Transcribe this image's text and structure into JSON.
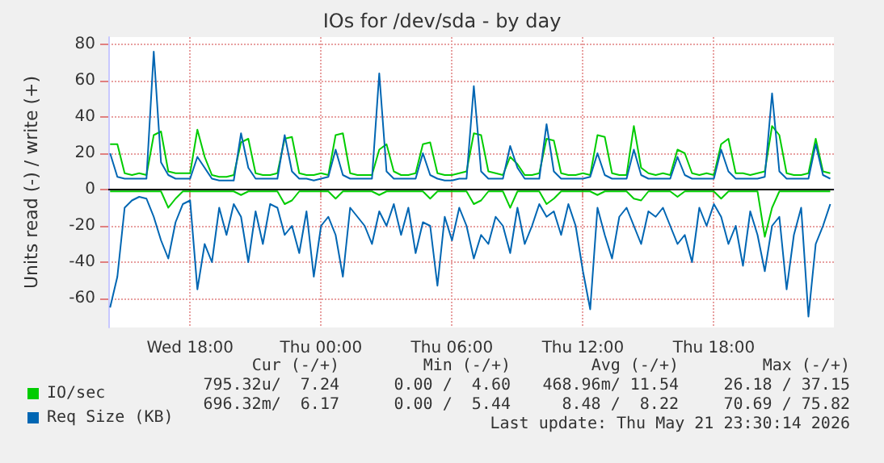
{
  "chart_data": {
    "type": "line",
    "title": "IOs for /dev/sda - by day",
    "ylabel": "Units read (-) / write (+)",
    "xlim": [
      "2026-05-20T14:15",
      "2026-05-21T23:30"
    ],
    "xticks": [
      {
        "value": "2026-05-20T18:00",
        "label": "Wed 18:00"
      },
      {
        "value": "2026-05-21T00:00",
        "label": "Thu 00:00"
      },
      {
        "value": "2026-05-21T06:00",
        "label": "Thu 06:00"
      },
      {
        "value": "2026-05-21T12:00",
        "label": "Thu 12:00"
      },
      {
        "value": "2026-05-21T18:00",
        "label": "Thu 18:00"
      }
    ],
    "ylim": [
      -76,
      84
    ],
    "yticks": [
      -60,
      -40,
      -20,
      0,
      20,
      40,
      60,
      80
    ],
    "grid": true,
    "legend": "bottom left",
    "marker": "none",
    "line_style": "solid",
    "ref_lines": [
      {
        "axis": "y",
        "value": 0,
        "color": "#000000"
      }
    ],
    "annotations": [
      "Cur (-/+)",
      "Min (-/+)",
      "Avg (-/+)",
      "Max (-/+)",
      "795.32u/  7.24",
      "0.00 /  4.60",
      "468.96m/ 11.54",
      "26.18 / 37.15",
      "696.32m/  6.17",
      "0.00 /  5.44",
      "8.48 /  8.22",
      "70.69 / 75.82",
      "Last update: Thu May 21 23:30:14 2026"
    ],
    "series": [
      {
        "name": "IO/sec",
        "color": "#00cc00",
        "values": [
          25,
          25,
          9,
          8,
          9,
          8,
          30,
          32,
          10,
          9,
          9,
          9,
          33,
          18,
          8,
          7,
          7,
          8,
          26,
          28,
          9,
          8,
          8,
          9,
          28,
          29,
          9,
          8,
          8,
          9,
          8,
          30,
          31,
          9,
          8,
          8,
          8,
          22,
          25,
          10,
          8,
          8,
          9,
          25,
          26,
          9,
          8,
          8,
          9,
          10,
          31,
          30,
          10,
          9,
          8,
          18,
          14,
          8,
          8,
          9,
          28,
          27,
          9,
          8,
          8,
          9,
          8,
          30,
          29,
          9,
          8,
          8,
          35,
          12,
          9,
          8,
          9,
          8,
          22,
          20,
          9,
          8,
          9,
          8,
          25,
          28,
          9,
          9,
          8,
          9,
          10,
          35,
          30,
          9,
          8,
          8,
          9,
          28,
          10,
          9
        ]
      },
      {
        "color": "#00cc00",
        "values": [
          -1,
          -1,
          -1,
          -1,
          -1,
          -1,
          -1,
          -1,
          -10,
          -5,
          -1,
          -1,
          -1,
          -1,
          -1,
          -1,
          -1,
          -1,
          -3,
          -1,
          -1,
          -1,
          -1,
          -1,
          -8,
          -6,
          -1,
          -1,
          -1,
          -1,
          -1,
          -5,
          -1,
          -1,
          -1,
          -1,
          -1,
          -3,
          -1,
          -1,
          -1,
          -1,
          -1,
          -1,
          -5,
          -1,
          -1,
          -1,
          -1,
          -1,
          -8,
          -6,
          -1,
          -1,
          -1,
          -10,
          -1,
          -1,
          -1,
          -1,
          -8,
          -5,
          -1,
          -1,
          -1,
          -1,
          -1,
          -3,
          -1,
          -1,
          -1,
          -1,
          -5,
          -6,
          -1,
          -1,
          -1,
          -1,
          -4,
          -1,
          -1,
          -1,
          -1,
          -1,
          -5,
          -1,
          -1,
          -1,
          -1,
          -1,
          -26,
          -10,
          -1,
          -1,
          -1,
          -1,
          -1,
          -1,
          -1,
          -1
        ]
      },
      {
        "name": "Req Size (KB)",
        "color": "#0066b3",
        "values": [
          20,
          7,
          6,
          6,
          6,
          6,
          76,
          15,
          8,
          6,
          6,
          6,
          18,
          12,
          6,
          5,
          5,
          5,
          31,
          12,
          6,
          6,
          6,
          6,
          30,
          10,
          6,
          6,
          5,
          6,
          7,
          22,
          8,
          6,
          6,
          6,
          6,
          64,
          10,
          6,
          6,
          6,
          6,
          20,
          8,
          6,
          5,
          5,
          6,
          6,
          57,
          10,
          6,
          6,
          6,
          24,
          12,
          6,
          6,
          6,
          36,
          10,
          6,
          6,
          6,
          6,
          7,
          20,
          8,
          6,
          6,
          6,
          22,
          8,
          6,
          6,
          6,
          6,
          18,
          8,
          6,
          6,
          6,
          6,
          22,
          10,
          6,
          6,
          6,
          6,
          7,
          53,
          10,
          6,
          6,
          6,
          6,
          25,
          8,
          6
        ]
      },
      {
        "color": "#0066b3",
        "values": [
          -65,
          -48,
          -10,
          -6,
          -4,
          -5,
          -15,
          -28,
          -38,
          -18,
          -8,
          -6,
          -55,
          -30,
          -40,
          -10,
          -25,
          -8,
          -15,
          -40,
          -12,
          -30,
          -8,
          -10,
          -25,
          -20,
          -35,
          -12,
          -48,
          -20,
          -15,
          -25,
          -48,
          -10,
          -15,
          -20,
          -30,
          -12,
          -20,
          -8,
          -25,
          -10,
          -35,
          -18,
          -20,
          -53,
          -15,
          -28,
          -10,
          -20,
          -38,
          -25,
          -30,
          -15,
          -20,
          -35,
          -10,
          -30,
          -20,
          -8,
          -15,
          -12,
          -25,
          -8,
          -20,
          -45,
          -66,
          -10,
          -25,
          -38,
          -15,
          -10,
          -20,
          -30,
          -12,
          -15,
          -10,
          -20,
          -30,
          -25,
          -40,
          -10,
          -20,
          -8,
          -15,
          -30,
          -20,
          -42,
          -12,
          -25,
          -45,
          -20,
          -15,
          -55,
          -25,
          -10,
          -70,
          -30,
          -20,
          -8
        ]
      }
    ],
    "x": [
      "2026-05-20T14:20",
      "2026-05-20T14:40",
      "2026-05-20T15:00",
      "2026-05-20T15:20",
      "2026-05-20T15:40",
      "2026-05-20T16:00",
      "2026-05-20T16:20",
      "2026-05-20T16:40",
      "2026-05-20T17:00",
      "2026-05-20T17:20",
      "2026-05-20T17:40",
      "2026-05-20T18:00",
      "2026-05-20T18:20",
      "2026-05-20T18:40",
      "2026-05-20T19:00",
      "2026-05-20T19:20",
      "2026-05-20T19:40",
      "2026-05-20T20:00",
      "2026-05-20T20:20",
      "2026-05-20T20:40",
      "2026-05-20T21:00",
      "2026-05-20T21:20",
      "2026-05-20T21:40",
      "2026-05-20T22:00",
      "2026-05-20T22:20",
      "2026-05-20T22:40",
      "2026-05-20T23:00",
      "2026-05-20T23:20",
      "2026-05-20T23:40",
      "2026-05-21T00:00",
      "2026-05-21T00:20",
      "2026-05-21T00:40",
      "2026-05-21T01:00",
      "2026-05-21T01:20",
      "2026-05-21T01:40",
      "2026-05-21T02:00",
      "2026-05-21T02:20",
      "2026-05-21T02:40",
      "2026-05-21T03:00",
      "2026-05-21T03:20",
      "2026-05-21T03:40",
      "2026-05-21T04:00",
      "2026-05-21T04:20",
      "2026-05-21T04:40",
      "2026-05-21T05:00",
      "2026-05-21T05:20",
      "2026-05-21T05:40",
      "2026-05-21T06:00",
      "2026-05-21T06:20",
      "2026-05-21T06:40",
      "2026-05-21T07:00",
      "2026-05-21T07:20",
      "2026-05-21T07:40",
      "2026-05-21T08:00",
      "2026-05-21T08:20",
      "2026-05-21T08:40",
      "2026-05-21T09:00",
      "2026-05-21T09:20",
      "2026-05-21T09:40",
      "2026-05-21T10:00",
      "2026-05-21T10:20",
      "2026-05-21T10:40",
      "2026-05-21T11:00",
      "2026-05-21T11:20",
      "2026-05-21T11:40",
      "2026-05-21T12:00",
      "2026-05-21T12:20",
      "2026-05-21T12:40",
      "2026-05-21T13:00",
      "2026-05-21T13:20",
      "2026-05-21T13:40",
      "2026-05-21T14:00",
      "2026-05-21T14:20",
      "2026-05-21T14:40",
      "2026-05-21T15:00",
      "2026-05-21T15:20",
      "2026-05-21T15:40",
      "2026-05-21T16:00",
      "2026-05-21T16:20",
      "2026-05-21T16:40",
      "2026-05-21T17:00",
      "2026-05-21T17:20",
      "2026-05-21T17:40",
      "2026-05-21T18:00",
      "2026-05-21T18:20",
      "2026-05-21T18:40",
      "2026-05-21T19:00",
      "2026-05-21T19:20",
      "2026-05-21T19:40",
      "2026-05-21T20:00",
      "2026-05-21T20:20",
      "2026-05-21T20:40",
      "2026-05-21T21:00",
      "2026-05-21T21:20",
      "2026-05-21T21:40",
      "2026-05-21T22:00",
      "2026-05-21T22:20",
      "2026-05-21T22:40",
      "2026-05-21T23:00",
      "2026-05-21T23:20"
    ]
  }
}
